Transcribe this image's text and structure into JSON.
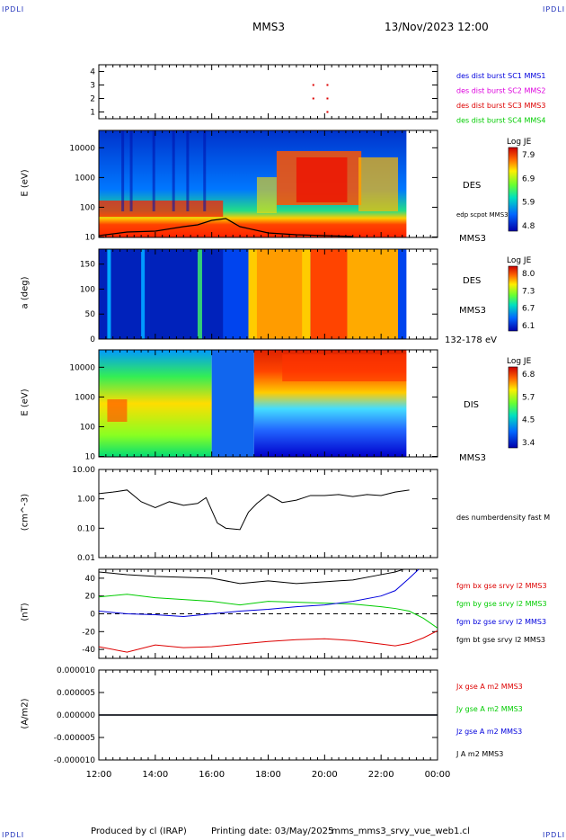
{
  "header": {
    "corner_left": "IPDLI",
    "corner_right": "IPDLI",
    "spacecraft": "MMS3",
    "datetime": "13/Nov/2023 12:00"
  },
  "footer": {
    "left": "Produced by cl (IRAP)",
    "mid": "Printing date: 03/May/2025",
    "right": "mms_mms3_srvy_vue_web1.cl",
    "corner_left": "IPDLI",
    "corner_right": "IPDLI"
  },
  "chart_data": [
    {
      "type": "scatter",
      "panel": "burst",
      "ylim": [
        0.5,
        4.5
      ],
      "yticks": [
        "1",
        "2",
        "3",
        "4"
      ],
      "legend": [
        {
          "label": "des dist burst SC1 MMS1",
          "color": "#0000dd"
        },
        {
          "label": "des dist burst SC2 MMS2",
          "color": "#dd00dd"
        },
        {
          "label": "des dist burst SC3 MMS3",
          "color": "#dd0000"
        },
        {
          "label": "des dist burst SC4 MMS4",
          "color": "#00cc00"
        }
      ],
      "points": [
        {
          "x": 19.6,
          "y": 3
        },
        {
          "x": 20.1,
          "y": 3
        },
        {
          "x": 19.6,
          "y": 2
        },
        {
          "x": 20.1,
          "y": 2
        },
        {
          "x": 20.1,
          "y": 1
        }
      ]
    },
    {
      "type": "heatmap",
      "panel": "des-energy",
      "ylabel": "E (eV)",
      "yticks": [
        "10",
        "100",
        "1000",
        "10000"
      ],
      "label": "DES",
      "sublabel": "MMS3",
      "overlay": "edp scpot MMS3",
      "colorbar": {
        "title": "Log JE",
        "ticks": [
          "7.9",
          "6.9",
          "5.9",
          "4.8"
        ]
      }
    },
    {
      "type": "heatmap",
      "panel": "des-pitch",
      "ylabel": "a (deg)",
      "yticks": [
        "0",
        "50",
        "100",
        "150"
      ],
      "label": "DES",
      "sublabel": "MMS3",
      "range_label": "132-178 eV",
      "colorbar": {
        "title": "Log JE",
        "ticks": [
          "8.0",
          "7.3",
          "6.7",
          "6.1"
        ]
      }
    },
    {
      "type": "heatmap",
      "panel": "dis-energy",
      "ylabel": "E (eV)",
      "yticks": [
        "10",
        "100",
        "1000",
        "10000"
      ],
      "label": "DIS",
      "sublabel": "MMS3",
      "colorbar": {
        "title": "Log JE",
        "ticks": [
          "6.8",
          "5.7",
          "4.5",
          "3.4"
        ]
      }
    },
    {
      "type": "line",
      "panel": "density",
      "ylabel": "(cm^-3)",
      "log": true,
      "yticks": [
        "0.01",
        "0.10",
        "1.00",
        "10.00"
      ],
      "series": [
        {
          "name": "des numberdensity fast M",
          "color": "#000000",
          "x": [
            12.0,
            12.5,
            13.0,
            13.5,
            14.0,
            14.5,
            15.0,
            15.5,
            15.8,
            16.2,
            16.5,
            17.0,
            17.3,
            17.6,
            18.0,
            18.5,
            19.0,
            19.5,
            20.0,
            20.5,
            21.0,
            21.5,
            22.0,
            22.5,
            23.0
          ],
          "y": [
            1.5,
            1.7,
            2.0,
            0.8,
            0.5,
            0.8,
            0.6,
            0.7,
            1.1,
            0.15,
            0.1,
            0.09,
            0.35,
            0.7,
            1.4,
            0.75,
            0.9,
            1.3,
            1.3,
            1.4,
            1.2,
            1.4,
            1.3,
            1.7,
            2.0
          ]
        }
      ]
    },
    {
      "type": "line",
      "panel": "b-field",
      "ylabel": "(nT)",
      "ylim": [
        -50,
        50
      ],
      "yticks": [
        "-40",
        "-20",
        "0",
        "20",
        "40"
      ],
      "series": [
        {
          "name": "fgm bx gse srvy l2 MMS3",
          "color": "#dd0000",
          "x": [
            12,
            13,
            14,
            15,
            16,
            17,
            18,
            19,
            20,
            21,
            22,
            22.5,
            23,
            23.5,
            24
          ],
          "y": [
            -37,
            -43,
            -35,
            -38,
            -37,
            -34,
            -31,
            -29,
            -28,
            -30,
            -34,
            -36,
            -33,
            -27,
            -19
          ]
        },
        {
          "name": "fgm by gse srvy l2 MMS3",
          "color": "#00cc00",
          "x": [
            12,
            13,
            14,
            15,
            16,
            17,
            18,
            19,
            20,
            21,
            22,
            22.5,
            23,
            23.5,
            24
          ],
          "y": [
            19,
            22,
            18,
            16,
            14,
            10,
            14,
            13,
            12,
            11,
            8,
            6,
            3,
            -5,
            -16
          ]
        },
        {
          "name": "fgm bz gse srvy l2 MMS3",
          "color": "#0000dd",
          "x": [
            12,
            13,
            14,
            15,
            16,
            17,
            18,
            19,
            20,
            21,
            22,
            22.5,
            23,
            23.5,
            24
          ],
          "y": [
            3,
            0,
            -1,
            -3,
            0,
            3,
            5,
            8,
            10,
            14,
            20,
            26,
            40,
            55,
            70
          ]
        },
        {
          "name": "fgm bt gse srvy l2 MMS3",
          "color": "#000000",
          "x": [
            12,
            13,
            14,
            15,
            16,
            17,
            18,
            19,
            20,
            21,
            22,
            22.5,
            23,
            23.5,
            24
          ],
          "y": [
            47,
            44,
            42,
            41,
            40,
            34,
            37,
            34,
            36,
            38,
            44,
            47,
            52,
            60,
            72
          ]
        }
      ]
    },
    {
      "type": "line",
      "panel": "current",
      "ylabel": "(A/m2)",
      "ylim": [
        -0.0001,
        0.0001
      ],
      "yticks": [
        "-0.000010",
        "-0.000005",
        "0.000000",
        "0.000005",
        "0.000010"
      ],
      "series": [
        {
          "name": "Jx gse A m2 MMS3",
          "color": "#dd0000",
          "x": [
            12,
            24
          ],
          "y": [
            0,
            0
          ]
        },
        {
          "name": "Jy gse A m2 MMS3",
          "color": "#00cc00",
          "x": [
            12,
            24
          ],
          "y": [
            0,
            0
          ]
        },
        {
          "name": "Jz gse A m2 MMS3",
          "color": "#0000dd",
          "x": [
            12,
            24
          ],
          "y": [
            0,
            0
          ]
        },
        {
          "name": "J A m2 MMS3",
          "color": "#000000",
          "x": [
            12,
            24
          ],
          "y": [
            0,
            0
          ]
        }
      ]
    }
  ],
  "xaxis": {
    "ticks": [
      "12:00",
      "14:00",
      "16:00",
      "18:00",
      "20:00",
      "22:00",
      "00:00"
    ]
  }
}
